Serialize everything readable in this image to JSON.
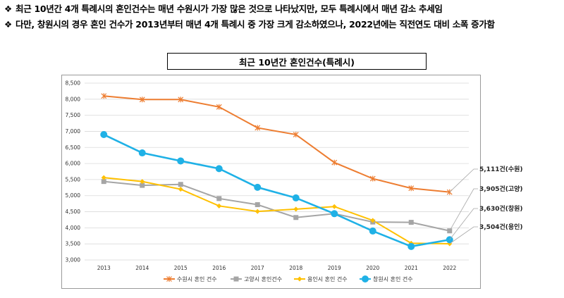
{
  "bullets": [
    {
      "mark": "❖",
      "text": "최근 10년간 4개 특례시의 혼인건수는 매년 수원시가 가장 많은 것으로 나타났지만, 모두 특례시에서 매년 감소 추세임"
    },
    {
      "mark": "❖",
      "text": "다만, 창원시의 경우 혼인 건수가 2013년부터 매년 4개 특례시 중 가장 크게 감소하였으나, 2022년에는 직전연도 대비 소폭 증가함"
    }
  ],
  "chart_data": {
    "type": "line",
    "title": "최근 10년간 혼인건수(특례시)",
    "categories": [
      "2013",
      "2014",
      "2015",
      "2016",
      "2017",
      "2018",
      "2019",
      "2020",
      "2021",
      "2022"
    ],
    "ylim": [
      3000,
      8500
    ],
    "yticks": [
      "3,000",
      "3,500",
      "4,000",
      "4,500",
      "5,000",
      "5,500",
      "6,000",
      "6,500",
      "7,000",
      "7,500",
      "8,000",
      "8,500"
    ],
    "grid": true,
    "legend_position": "bottom",
    "series": [
      {
        "name": "수원시 혼인 건수",
        "color": "#ed7d31",
        "marker": "star",
        "values": [
          8100,
          7990,
          7990,
          7760,
          7110,
          6900,
          6030,
          5530,
          5230,
          5111
        ]
      },
      {
        "name": "고양시 혼인건수",
        "color": "#a5a5a5",
        "marker": "square",
        "values": [
          5440,
          5320,
          5350,
          4910,
          4720,
          4320,
          4440,
          4180,
          4170,
          3905
        ]
      },
      {
        "name": "용인시 혼인 건수",
        "color": "#ffc000",
        "marker": "diamond",
        "values": [
          5560,
          5440,
          5200,
          4680,
          4510,
          4580,
          4660,
          4230,
          3520,
          3504
        ]
      },
      {
        "name": "창원시 혼인 건수",
        "color": "#1fb1e6",
        "marker": "circle",
        "values": [
          6900,
          6330,
          6080,
          5840,
          5260,
          4930,
          4440,
          3900,
          3420,
          3630
        ]
      }
    ],
    "callouts": [
      "5,111건(수원)",
      "3,905건(고양)",
      "3,630건(창원)",
      "3,504건(용인)"
    ]
  }
}
